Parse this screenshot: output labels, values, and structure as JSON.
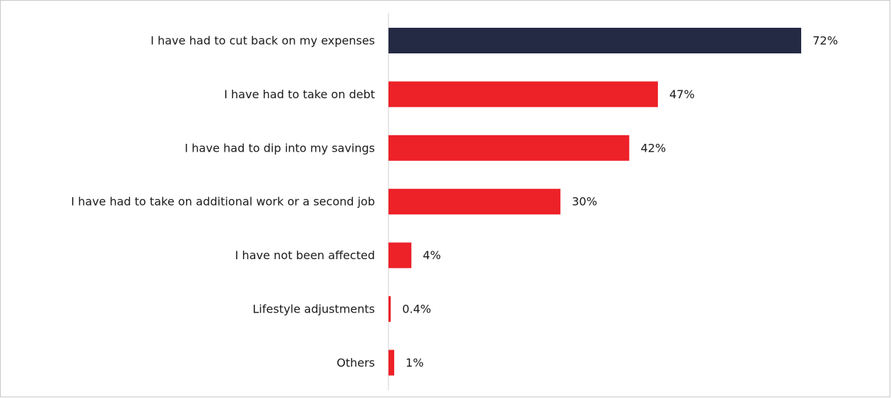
{
  "chart_data": {
    "type": "bar",
    "orientation": "horizontal",
    "categories": [
      "I have had to cut back on my expenses",
      "I have had to take on debt",
      "I have had to dip into my savings",
      "I have had to take on additional work or a second job",
      "I have not been affected",
      "Lifestyle adjustments",
      "Others"
    ],
    "values": [
      72,
      47,
      42,
      30,
      4,
      0.4,
      1
    ],
    "value_labels": [
      "72%",
      "47%",
      "42%",
      "30%",
      "4%",
      "0.4%",
      "1%"
    ],
    "highlight_index": 0,
    "xlim": [
      0,
      72
    ],
    "grid": false,
    "legend": "none",
    "colors": {
      "highlight": "#242a44",
      "bar": "#ed2128",
      "axis": "#d0d0d0",
      "frame": "#c8c8c8"
    }
  }
}
